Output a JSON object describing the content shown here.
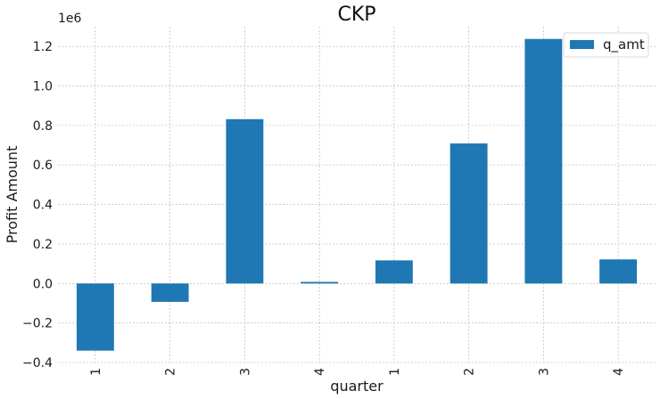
{
  "chart_data": {
    "type": "bar",
    "title": "CKP",
    "xlabel": "quarter",
    "ylabel": "Profit Amount",
    "y_offset_label": "1e6",
    "y_scale_factor": 1000000,
    "categories": [
      "1",
      "2",
      "3",
      "4",
      "1",
      "2",
      "3",
      "4"
    ],
    "series": [
      {
        "name": "q_amt",
        "color": "#1f77b4",
        "values": [
          -340000,
          -93000,
          832000,
          8000,
          117000,
          709000,
          1238000,
          122000
        ]
      }
    ],
    "ylim": [
      -0.4,
      1.3
    ],
    "yticks": [
      -0.4,
      -0.2,
      0.0,
      0.2,
      0.4,
      0.6,
      0.8,
      1.0,
      1.2
    ],
    "ytick_labels": [
      "−0.4",
      "−0.2",
      "0.0",
      "0.2",
      "0.4",
      "0.6",
      "0.8",
      "1.0",
      "1.2"
    ],
    "grid": true,
    "legend_position": "top-right"
  }
}
